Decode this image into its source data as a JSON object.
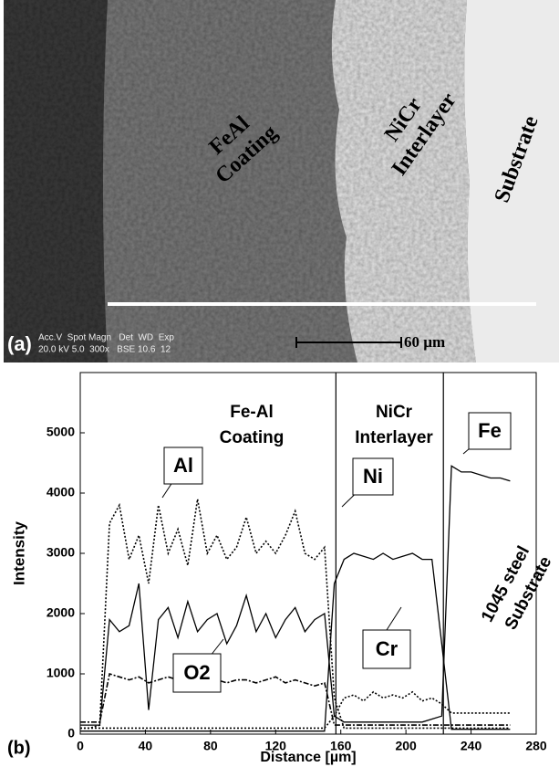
{
  "image_panel": {
    "label": "(a)",
    "region_labels": [
      "FeAl",
      "Coating",
      "NiCr",
      "Interlayer",
      "Substrate"
    ],
    "scale_bar": "60 µm",
    "info": [
      "Acc.V  Spot Magn   Det  WD  Exp",
      "20.0 kV 5.0  300x   BSE 10.6  12"
    ]
  },
  "chart_data": {
    "type": "line",
    "panel_label": "(b)",
    "ylabel": "Intensity",
    "xlabel": "Distance [µm]",
    "xlim": [
      0,
      280
    ],
    "xticks": [
      0,
      40,
      80,
      120,
      160,
      200,
      240,
      280
    ],
    "ylim": [
      0,
      6000
    ],
    "yticks": [
      0,
      1000,
      2000,
      3000,
      4000,
      5000
    ],
    "boundaries": [
      157,
      223
    ],
    "annotations": [
      "Fe-Al",
      "Coating",
      "NiCr",
      "Interlayer",
      "1045 steel",
      "Substrate"
    ],
    "x": [
      0,
      6,
      12,
      18,
      24,
      30,
      36,
      42,
      48,
      54,
      60,
      66,
      72,
      78,
      84,
      90,
      96,
      102,
      108,
      114,
      120,
      126,
      132,
      138,
      144,
      150,
      156,
      162,
      168,
      174,
      180,
      186,
      192,
      198,
      204,
      210,
      216,
      222,
      228,
      234,
      240,
      246,
      252,
      258,
      264
    ],
    "series": [
      {
        "name": "Al",
        "color": "#000000",
        "dash": "dotted",
        "values": [
          100,
          100,
          150,
          3500,
          3800,
          2900,
          3300,
          2500,
          3800,
          3000,
          3400,
          2800,
          3900,
          3000,
          3300,
          2900,
          3100,
          3600,
          3000,
          3200,
          3000,
          3300,
          3700,
          3000,
          2900,
          3100,
          600,
          100,
          100,
          100,
          100,
          100,
          100,
          100,
          100,
          100,
          100,
          100,
          100,
          100,
          100,
          100,
          100,
          100,
          100
        ]
      },
      {
        "name": "Fe",
        "color": "#000000",
        "dash": "solid",
        "values": [
          150,
          150,
          150,
          1900,
          1700,
          1800,
          2500,
          400,
          1900,
          2100,
          1600,
          2200,
          1700,
          1900,
          2000,
          1500,
          1800,
          2300,
          1700,
          2000,
          1600,
          1900,
          2100,
          1700,
          1900,
          2000,
          300,
          200,
          200,
          200,
          200,
          200,
          200,
          200,
          200,
          200,
          250,
          300,
          4450,
          4350,
          4350,
          4300,
          4250,
          4250,
          4200
        ]
      },
      {
        "name": "Ni",
        "color": "#000000",
        "dash": "solid",
        "values": [
          50,
          50,
          50,
          50,
          50,
          50,
          50,
          50,
          50,
          50,
          50,
          50,
          50,
          50,
          50,
          50,
          50,
          50,
          50,
          50,
          50,
          50,
          50,
          50,
          50,
          50,
          2500,
          2900,
          3000,
          2950,
          2900,
          3000,
          2900,
          2950,
          3000,
          2900,
          2900,
          1500,
          80,
          80,
          80,
          80,
          80,
          80,
          80
        ]
      },
      {
        "name": "Cr",
        "color": "#000000",
        "dash": "dotted",
        "values": [
          100,
          100,
          100,
          100,
          100,
          100,
          100,
          100,
          100,
          100,
          100,
          100,
          100,
          100,
          100,
          100,
          100,
          100,
          100,
          100,
          100,
          100,
          100,
          100,
          100,
          100,
          300,
          600,
          650,
          550,
          700,
          600,
          650,
          600,
          700,
          550,
          600,
          500,
          350,
          350,
          350,
          350,
          350,
          350,
          350
        ]
      },
      {
        "name": "O2",
        "color": "#000000",
        "dash": "dashdot",
        "values": [
          200,
          200,
          200,
          1000,
          950,
          900,
          950,
          850,
          900,
          950,
          900,
          850,
          900,
          950,
          900,
          850,
          900,
          900,
          850,
          900,
          950,
          850,
          900,
          850,
          800,
          850,
          150,
          150,
          150,
          150,
          150,
          150,
          150,
          150,
          150,
          150,
          150,
          150,
          150,
          150,
          150,
          150,
          150,
          150,
          150
        ]
      }
    ]
  }
}
